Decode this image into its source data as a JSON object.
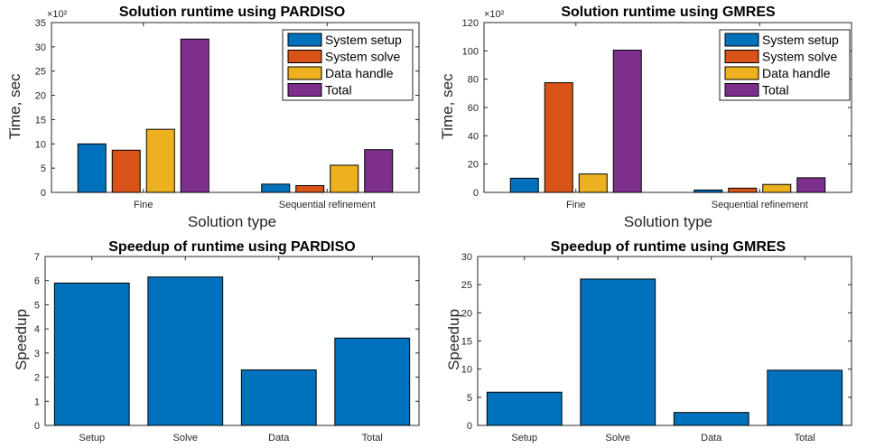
{
  "chart_data": [
    {
      "id": "pardiso-runtime",
      "type": "bar",
      "title": "Solution runtime using PARDISO",
      "xlabel": "Solution type",
      "ylabel": "Time, sec",
      "exponent": "×10²",
      "categories": [
        "Fine",
        "Sequential refinement"
      ],
      "series": [
        {
          "name": "System setup",
          "values": [
            10.0,
            1.7
          ],
          "color": "#0072BD"
        },
        {
          "name": "System solve",
          "values": [
            8.7,
            1.4
          ],
          "color": "#D95319"
        },
        {
          "name": "Data handle",
          "values": [
            13.0,
            5.6
          ],
          "color": "#EDB120"
        },
        {
          "name": "Total",
          "values": [
            31.6,
            8.8
          ],
          "color": "#7E2F8E"
        }
      ],
      "ylim": [
        0,
        35
      ],
      "yticks": [
        0,
        5,
        10,
        15,
        20,
        25,
        30,
        35
      ],
      "legend": "top-right"
    },
    {
      "id": "gmres-runtime",
      "type": "bar",
      "title": "Solution runtime using GMRES",
      "xlabel": "Solution type",
      "ylabel": "Time, sec",
      "exponent": "×10²",
      "categories": [
        "Fine",
        "Sequential refinement"
      ],
      "series": [
        {
          "name": "System setup",
          "values": [
            10.0,
            1.7
          ],
          "color": "#0072BD"
        },
        {
          "name": "System solve",
          "values": [
            77.5,
            3.0
          ],
          "color": "#D95319"
        },
        {
          "name": "Data handle",
          "values": [
            13.0,
            5.6
          ],
          "color": "#EDB120"
        },
        {
          "name": "Total",
          "values": [
            100.5,
            10.3
          ],
          "color": "#7E2F8E"
        }
      ],
      "ylim": [
        0,
        120
      ],
      "yticks": [
        0,
        20,
        40,
        60,
        80,
        100,
        120
      ],
      "legend": "top-right"
    },
    {
      "id": "pardiso-speedup",
      "type": "bar",
      "title": "Speedup of runtime using PARDISO",
      "xlabel": "",
      "ylabel": "Speedup",
      "categories": [
        "Setup",
        "Solve",
        "Data",
        "Total"
      ],
      "values": [
        5.9,
        6.15,
        2.3,
        3.62
      ],
      "color": "#0072BD",
      "ylim": [
        0,
        7
      ],
      "yticks": [
        0,
        1,
        2,
        3,
        4,
        5,
        6,
        7
      ]
    },
    {
      "id": "gmres-speedup",
      "type": "bar",
      "title": "Speedup of runtime using GMRES",
      "xlabel": "",
      "ylabel": "Speedup",
      "categories": [
        "Setup",
        "Solve",
        "Data",
        "Total"
      ],
      "values": [
        5.9,
        26.0,
        2.3,
        9.8
      ],
      "color": "#0072BD",
      "ylim": [
        0,
        30
      ],
      "yticks": [
        0,
        5,
        10,
        15,
        20,
        25,
        30
      ]
    }
  ]
}
